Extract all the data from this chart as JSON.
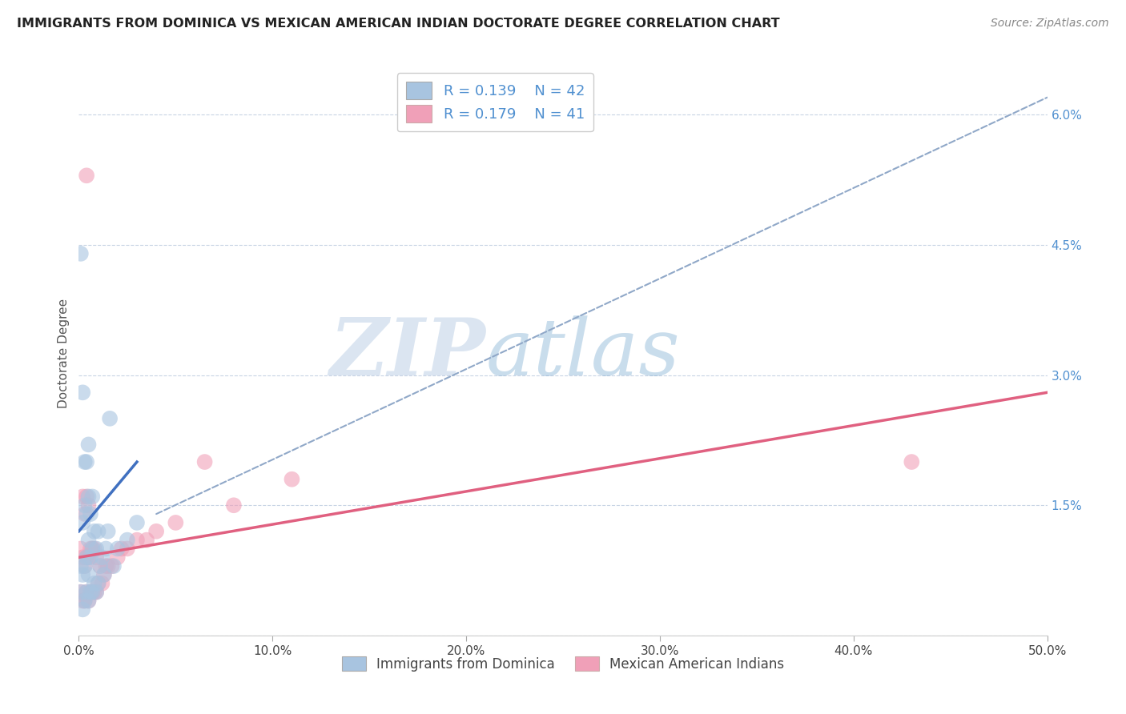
{
  "title": "IMMIGRANTS FROM DOMINICA VS MEXICAN AMERICAN INDIAN DOCTORATE DEGREE CORRELATION CHART",
  "source_text": "Source: ZipAtlas.com",
  "ylabel": "Doctorate Degree",
  "xlim": [
    0.0,
    0.5
  ],
  "ylim": [
    0.0,
    0.065
  ],
  "xticks": [
    0.0,
    0.1,
    0.2,
    0.3,
    0.4,
    0.5
  ],
  "xticklabels": [
    "0.0%",
    "10.0%",
    "20.0%",
    "30.0%",
    "40.0%",
    "50.0%"
  ],
  "yticks_right": [
    0.0,
    0.015,
    0.03,
    0.045,
    0.06
  ],
  "ytick_labels_right": [
    "",
    "1.5%",
    "3.0%",
    "4.5%",
    "6.0%"
  ],
  "legend_r1": "R = 0.139",
  "legend_n1": "N = 42",
  "legend_r2": "R = 0.179",
  "legend_n2": "N = 41",
  "legend_label1": "Immigrants from Dominica",
  "legend_label2": "Mexican American Indians",
  "color_blue": "#a8c4e0",
  "color_pink": "#f0a0b8",
  "color_blue_dark": "#5090d0",
  "color_pink_dark": "#e87090",
  "color_trendline_blue": "#4070c0",
  "color_trendline_pink": "#e06080",
  "color_trendline_dashed": "#90a8c8",
  "watermark_zip": "ZIP",
  "watermark_atlas": "atlas",
  "scatter_blue_x": [
    0.001,
    0.001,
    0.002,
    0.002,
    0.002,
    0.003,
    0.003,
    0.003,
    0.003,
    0.004,
    0.004,
    0.004,
    0.004,
    0.005,
    0.005,
    0.005,
    0.005,
    0.005,
    0.006,
    0.006,
    0.006,
    0.007,
    0.007,
    0.007,
    0.008,
    0.008,
    0.009,
    0.009,
    0.01,
    0.01,
    0.011,
    0.012,
    0.013,
    0.014,
    0.015,
    0.016,
    0.018,
    0.02,
    0.025,
    0.03,
    0.001,
    0.002
  ],
  "scatter_blue_y": [
    0.005,
    0.008,
    0.003,
    0.007,
    0.013,
    0.004,
    0.008,
    0.015,
    0.02,
    0.005,
    0.009,
    0.014,
    0.02,
    0.004,
    0.007,
    0.011,
    0.016,
    0.022,
    0.005,
    0.009,
    0.014,
    0.005,
    0.01,
    0.016,
    0.006,
    0.012,
    0.005,
    0.01,
    0.006,
    0.012,
    0.008,
    0.009,
    0.007,
    0.01,
    0.012,
    0.025,
    0.008,
    0.01,
    0.011,
    0.013,
    0.044,
    0.028
  ],
  "scatter_pink_x": [
    0.001,
    0.001,
    0.002,
    0.002,
    0.002,
    0.003,
    0.003,
    0.003,
    0.004,
    0.004,
    0.004,
    0.005,
    0.005,
    0.005,
    0.006,
    0.006,
    0.007,
    0.007,
    0.008,
    0.008,
    0.009,
    0.009,
    0.01,
    0.011,
    0.012,
    0.013,
    0.014,
    0.015,
    0.017,
    0.02,
    0.022,
    0.025,
    0.03,
    0.035,
    0.04,
    0.05,
    0.065,
    0.08,
    0.11,
    0.43,
    0.004
  ],
  "scatter_pink_y": [
    0.005,
    0.01,
    0.004,
    0.009,
    0.016,
    0.004,
    0.008,
    0.014,
    0.005,
    0.009,
    0.016,
    0.004,
    0.009,
    0.015,
    0.005,
    0.01,
    0.005,
    0.01,
    0.005,
    0.01,
    0.005,
    0.009,
    0.006,
    0.008,
    0.006,
    0.007,
    0.008,
    0.008,
    0.008,
    0.009,
    0.01,
    0.01,
    0.011,
    0.011,
    0.012,
    0.013,
    0.02,
    0.015,
    0.018,
    0.02,
    0.053
  ],
  "blue_trend_x": [
    0.0,
    0.03
  ],
  "blue_trend_y_start": 0.012,
  "blue_trend_y_end": 0.02,
  "pink_trend_x": [
    0.0,
    0.5
  ],
  "pink_trend_y_start": 0.009,
  "pink_trend_y_end": 0.028,
  "dashed_trend_x": [
    0.04,
    0.5
  ],
  "dashed_trend_y_start": 0.014,
  "dashed_trend_y_end": 0.062
}
